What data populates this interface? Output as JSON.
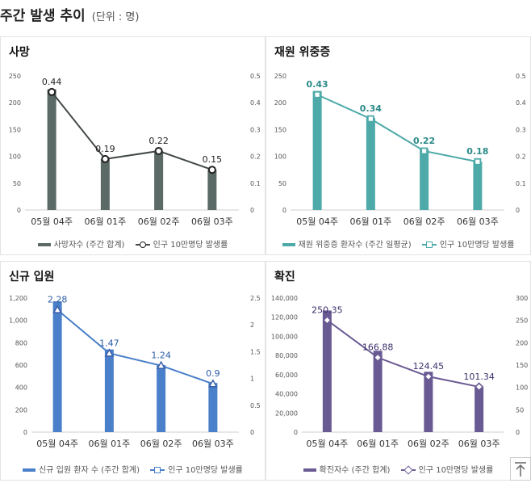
{
  "header": {
    "title": "주간 발생 추이",
    "unit": "(단위 : 명)"
  },
  "colors": {
    "death": "#5b6a66",
    "severe": "#4daaa8",
    "newadm": "#4a7fc9",
    "confirmed": "#6a5a93"
  },
  "icons": {
    "scroll_top": "arrow-up-to-line-icon"
  },
  "chart_data": [
    {
      "id": "death",
      "title": "사망",
      "type": "bar",
      "categories": [
        "05월 04주",
        "06월 01주",
        "06월 02주",
        "06월 03주"
      ],
      "series": [
        {
          "name": "사망자수 (주간 합계)",
          "type": "bar",
          "axis": "left",
          "values": [
            225,
            95,
            110,
            75
          ]
        },
        {
          "name": "인구 10만명당 발생률",
          "type": "line",
          "axis": "right",
          "marker": "circle",
          "values": [
            0.44,
            0.19,
            0.22,
            0.15
          ]
        }
      ],
      "data_labels": [
        "0.44",
        "0.19",
        "0.22",
        "0.15"
      ],
      "y_left": {
        "min": 0,
        "max": 250,
        "ticks": [
          "250",
          "200",
          "150",
          "100",
          "50",
          "0"
        ]
      },
      "y_right": {
        "min": 0,
        "max": 0.5,
        "ticks": [
          "0.5",
          "0.4",
          "0.3",
          "0.2",
          "0.1",
          "0"
        ]
      },
      "grid": false,
      "legend": "bottom"
    },
    {
      "id": "severe",
      "title": "재원 위중증",
      "type": "bar",
      "categories": [
        "05월 04주",
        "06월 01주",
        "06월 02주",
        "06월 03주"
      ],
      "series": [
        {
          "name": "재원 위중증 환자수 (주간 일평균)",
          "type": "bar",
          "axis": "left",
          "values": [
            222,
            172,
            114,
            90
          ]
        },
        {
          "name": "인구 10만명당 발생률",
          "type": "line",
          "axis": "right",
          "marker": "square",
          "values": [
            0.43,
            0.34,
            0.22,
            0.18
          ]
        }
      ],
      "data_labels": [
        "0.43",
        "0.34",
        "0.22",
        "0.18"
      ],
      "y_left": {
        "min": 0,
        "max": 250,
        "ticks": [
          "250",
          "200",
          "150",
          "100",
          "50",
          "0"
        ]
      },
      "y_right": {
        "min": 0,
        "max": 0.5,
        "ticks": [
          "0.5",
          "0.4",
          "0.3",
          "0.2",
          "0.1",
          "0"
        ]
      },
      "grid": false,
      "legend": "bottom"
    },
    {
      "id": "newadm",
      "title": "신규 입원",
      "type": "bar",
      "categories": [
        "05월 04주",
        "06월 01주",
        "06월 02주",
        "06월 03주"
      ],
      "series": [
        {
          "name": "신규 입원 환자 수 (주간 합계)",
          "type": "bar",
          "axis": "left",
          "values": [
            1170,
            740,
            600,
            440
          ]
        },
        {
          "name": "인구 10만명당 발생률",
          "type": "line",
          "axis": "right",
          "marker": "triangle",
          "values": [
            2.28,
            1.47,
            1.24,
            0.9
          ]
        }
      ],
      "data_labels": [
        "2.28",
        "1.47",
        "1.24",
        "0.9"
      ],
      "y_left": {
        "min": 0,
        "max": 1200,
        "ticks": [
          "1,200",
          "1,000",
          "800",
          "600",
          "400",
          "200",
          "0"
        ]
      },
      "y_right": {
        "min": 0,
        "max": 2.5,
        "ticks": [
          "2.5",
          "2",
          "1.5",
          "1",
          "0.5",
          "0"
        ]
      },
      "grid": false,
      "legend": "bottom"
    },
    {
      "id": "confirmed",
      "title": "확진",
      "type": "bar",
      "categories": [
        "05월 04주",
        "06월 01주",
        "06월 02주",
        "06월 03주"
      ],
      "series": [
        {
          "name": "확진자수 (주간 합계)",
          "type": "bar",
          "axis": "left",
          "values": [
            127000,
            85000,
            63000,
            47000
          ]
        },
        {
          "name": "인구 10만명당 발생률",
          "type": "line",
          "axis": "right",
          "marker": "diamond",
          "values": [
            250.35,
            166.88,
            124.45,
            101.34
          ]
        }
      ],
      "data_labels": [
        "250.35",
        "166.88",
        "124.45",
        "101.34"
      ],
      "y_left": {
        "min": 0,
        "max": 140000,
        "ticks": [
          "140,000",
          "120,000",
          "100,000",
          "80,000",
          "60,000",
          "40,000",
          "20,000",
          "0"
        ]
      },
      "y_right": {
        "min": 0,
        "max": 300,
        "ticks": [
          "300",
          "250",
          "200",
          "150",
          "100",
          "50",
          "0"
        ]
      },
      "grid": false,
      "legend": "bottom"
    }
  ]
}
